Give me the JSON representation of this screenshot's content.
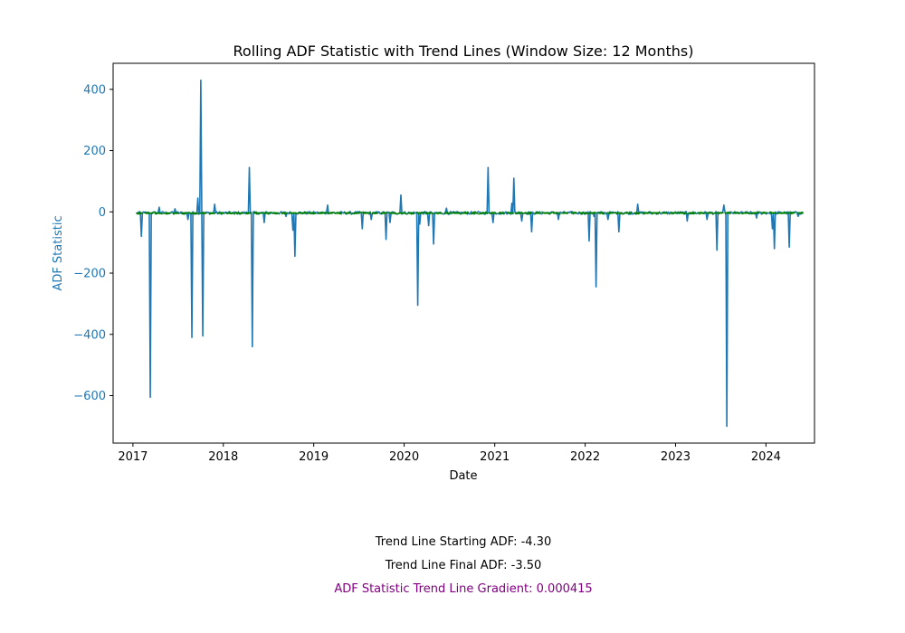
{
  "chart_data": {
    "type": "line",
    "title": "Rolling ADF Statistic with Trend Lines (Window Size: 12 Months)",
    "xlabel": "Date",
    "ylabel": "ADF Statistic",
    "xlim": [
      "2016-10-13",
      "2024-07-15"
    ],
    "ylim": [
      -755,
      485
    ],
    "x_ticks": [
      "2017",
      "2018",
      "2019",
      "2020",
      "2021",
      "2022",
      "2023",
      "2024"
    ],
    "y_ticks": [
      400,
      200,
      0,
      -200,
      -400,
      -600
    ],
    "y_tick_labels": [
      "400",
      "200",
      "0",
      "−200",
      "−400",
      "−600"
    ],
    "x_range": [
      "2017-01-15",
      "2024-06-01"
    ],
    "grid": false,
    "legend": "none",
    "series": [
      {
        "color": "#1f77b4",
        "spikes": [
          {
            "x": "2017-02-05",
            "y": -80
          },
          {
            "x": "2017-03-10",
            "y": -605
          },
          {
            "x": "2017-04-15",
            "y": 15
          },
          {
            "x": "2017-06-20",
            "y": 10
          },
          {
            "x": "2017-08-12",
            "y": -25
          },
          {
            "x": "2017-08-26",
            "y": -410
          },
          {
            "x": "2017-09-20",
            "y": 45
          },
          {
            "x": "2017-10-01",
            "y": 430
          },
          {
            "x": "2017-10-08",
            "y": -405
          },
          {
            "x": "2017-11-25",
            "y": 25
          },
          {
            "x": "2018-04-15",
            "y": 145
          },
          {
            "x": "2018-04-28",
            "y": -440
          },
          {
            "x": "2018-06-15",
            "y": -35
          },
          {
            "x": "2018-09-10",
            "y": -15
          },
          {
            "x": "2018-10-08",
            "y": -60
          },
          {
            "x": "2018-10-15",
            "y": -145
          },
          {
            "x": "2019-02-25",
            "y": 22
          },
          {
            "x": "2019-07-15",
            "y": -55
          },
          {
            "x": "2019-08-20",
            "y": -25
          },
          {
            "x": "2019-10-18",
            "y": -90
          },
          {
            "x": "2019-11-05",
            "y": -35
          },
          {
            "x": "2019-12-20",
            "y": 55
          },
          {
            "x": "2020-02-25",
            "y": -305
          },
          {
            "x": "2020-03-05",
            "y": -40
          },
          {
            "x": "2020-04-10",
            "y": -45
          },
          {
            "x": "2020-04-28",
            "y": -105
          },
          {
            "x": "2020-06-20",
            "y": 12
          },
          {
            "x": "2020-12-05",
            "y": 145
          },
          {
            "x": "2020-12-25",
            "y": -35
          },
          {
            "x": "2021-03-10",
            "y": 28
          },
          {
            "x": "2021-03-20",
            "y": 110
          },
          {
            "x": "2021-04-20",
            "y": -30
          },
          {
            "x": "2021-05-28",
            "y": -65
          },
          {
            "x": "2021-09-15",
            "y": -25
          },
          {
            "x": "2022-01-15",
            "y": -95
          },
          {
            "x": "2022-02-05",
            "y": -15
          },
          {
            "x": "2022-02-15",
            "y": -245
          },
          {
            "x": "2022-04-01",
            "y": -25
          },
          {
            "x": "2022-05-15",
            "y": -65
          },
          {
            "x": "2022-08-01",
            "y": 25
          },
          {
            "x": "2023-02-15",
            "y": -30
          },
          {
            "x": "2023-05-08",
            "y": -25
          },
          {
            "x": "2023-06-18",
            "y": -125
          },
          {
            "x": "2023-07-15",
            "y": 22
          },
          {
            "x": "2023-07-28",
            "y": -700
          },
          {
            "x": "2023-11-25",
            "y": -20
          },
          {
            "x": "2024-01-25",
            "y": -55
          },
          {
            "x": "2024-02-03",
            "y": -120
          },
          {
            "x": "2024-04-05",
            "y": -115
          },
          {
            "x": "2024-05-10",
            "y": -15
          }
        ]
      },
      {
        "color": "#008000",
        "values": [
          {
            "x": "2017-01-15",
            "y": -4.3
          },
          {
            "x": "2024-06-01",
            "y": -3.5
          }
        ]
      }
    ]
  },
  "annotations": {
    "start_label": "Trend Line Starting ADF: -4.30",
    "final_label": "Trend Line Final ADF: -3.50",
    "gradient_label": "ADF Statistic Trend Line Gradient: 0.000415"
  },
  "colors": {
    "axis_accent": "#1f77b4",
    "gradient_text": "#800080",
    "trend_line": "#008000"
  }
}
